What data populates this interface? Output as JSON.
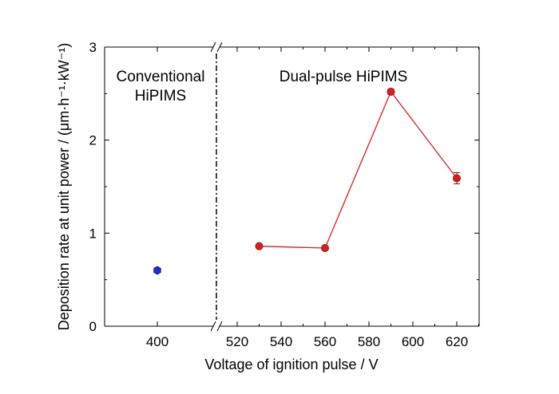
{
  "chart_data": {
    "type": "scatter",
    "xlabel": "Voltage of ignition pulse / V",
    "ylabel": "Deposition rate at unit power / (μm·h⁻¹·kW⁻¹)",
    "ylim": [
      0,
      3
    ],
    "y_ticks": [
      0,
      1,
      2,
      3
    ],
    "broken_x_axis": true,
    "grid": false,
    "legend": "none",
    "regions": [
      {
        "label_lines": [
          "Conventional",
          "HiPIMS"
        ]
      },
      {
        "label_lines": [
          "Dual-pulse HiPIMS"
        ]
      }
    ],
    "panels": [
      {
        "x_ticks": [
          400
        ],
        "series": [
          {
            "style": "marker",
            "color": "#1f2fd0",
            "x": [
              400
            ],
            "y": [
              0.6
            ]
          }
        ]
      },
      {
        "xlim": [
          510,
          630
        ],
        "x_ticks": [
          520,
          540,
          560,
          580,
          600,
          620
        ],
        "series": [
          {
            "style": "line+marker",
            "color": "#d42020",
            "x": [
              530,
              560,
              590,
              620
            ],
            "y": [
              0.86,
              0.84,
              2.52,
              1.59
            ],
            "error": [
              0.02,
              0.02,
              0.03,
              0.06
            ]
          }
        ]
      }
    ]
  }
}
